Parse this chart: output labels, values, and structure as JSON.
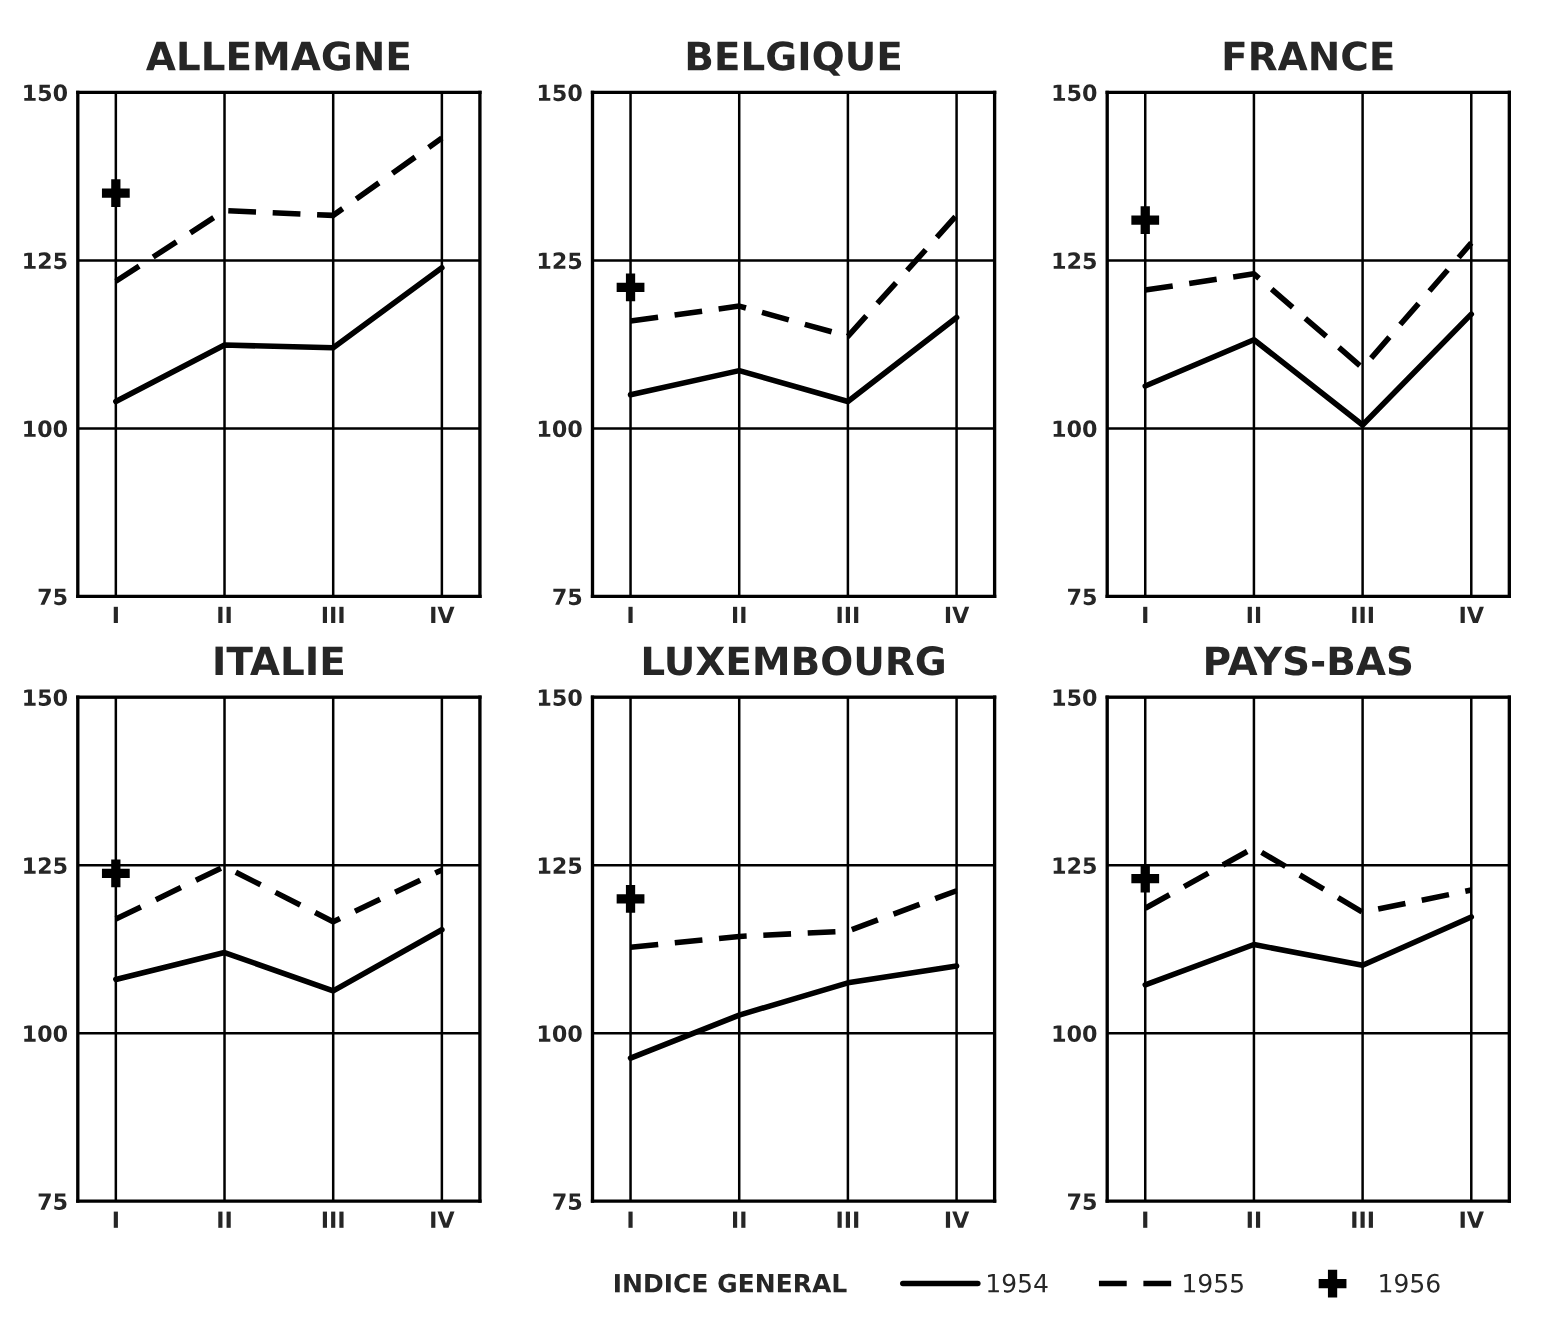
{
  "chart_data": [
    {
      "type": "line",
      "title": "ALLEMAGNE",
      "categories": [
        "I",
        "II",
        "III",
        "IV"
      ],
      "ylim": [
        75,
        150
      ],
      "yticks": [
        75,
        100,
        125,
        150
      ],
      "grid": true,
      "series": [
        {
          "color": "#000000",
          "line_style": "solid",
          "values": [
            104,
            112.4,
            112,
            123.9
          ]
        },
        {
          "color": "#000000",
          "line_style": "dashed",
          "values": [
            121.9,
            132.4,
            131.7,
            143.2
          ]
        },
        {
          "type": "scatter",
          "marker": "cross",
          "color": "#000000",
          "values": [
            135,
            null,
            null,
            null
          ]
        }
      ]
    },
    {
      "type": "line",
      "title": "BELGIQUE",
      "categories": [
        "I",
        "II",
        "III",
        "IV"
      ],
      "ylim": [
        75,
        150
      ],
      "yticks": [
        75,
        100,
        125,
        150
      ],
      "grid": true,
      "series": [
        {
          "color": "#000000",
          "line_style": "solid",
          "values": [
            105,
            108.6,
            104,
            116.5
          ]
        },
        {
          "color": "#000000",
          "line_style": "dashed",
          "values": [
            116,
            118.2,
            113.7,
            131.7
          ]
        },
        {
          "type": "scatter",
          "marker": "cross",
          "color": "#000000",
          "values": [
            121,
            null,
            null,
            null
          ]
        }
      ]
    },
    {
      "type": "line",
      "title": "FRANCE",
      "categories": [
        "I",
        "II",
        "III",
        "IV"
      ],
      "ylim": [
        75,
        150
      ],
      "yticks": [
        75,
        100,
        125,
        150
      ],
      "grid": true,
      "series": [
        {
          "color": "#000000",
          "line_style": "solid",
          "values": [
            106.3,
            113.2,
            100.5,
            117
          ]
        },
        {
          "color": "#000000",
          "line_style": "dashed",
          "values": [
            120.6,
            123,
            109,
            127.6
          ]
        },
        {
          "type": "scatter",
          "marker": "cross",
          "color": "#000000",
          "values": [
            131,
            null,
            null,
            null
          ]
        }
      ]
    },
    {
      "type": "line",
      "title": "ITALIE",
      "categories": [
        "I",
        "II",
        "III",
        "IV"
      ],
      "ylim": [
        75,
        150
      ],
      "yticks": [
        75,
        100,
        125,
        150
      ],
      "grid": true,
      "series": [
        {
          "color": "#000000",
          "line_style": "solid",
          "values": [
            108,
            112,
            106.3,
            115.4
          ]
        },
        {
          "color": "#000000",
          "line_style": "dashed",
          "values": [
            117,
            124.8,
            116.6,
            124.3
          ]
        },
        {
          "type": "scatter",
          "marker": "cross",
          "color": "#000000",
          "values": [
            123.8,
            null,
            null,
            null
          ]
        }
      ]
    },
    {
      "type": "line",
      "title": "LUXEMBOURG",
      "categories": [
        "I",
        "II",
        "III",
        "IV"
      ],
      "ylim": [
        75,
        150
      ],
      "yticks": [
        75,
        100,
        125,
        150
      ],
      "grid": true,
      "series": [
        {
          "color": "#000000",
          "line_style": "solid",
          "values": [
            96.3,
            102.7,
            107.5,
            110
          ]
        },
        {
          "color": "#000000",
          "line_style": "dashed",
          "values": [
            112.8,
            114.4,
            115.2,
            121.2
          ]
        },
        {
          "type": "scatter",
          "marker": "cross",
          "color": "#000000",
          "values": [
            120,
            null,
            null,
            null
          ]
        }
      ]
    },
    {
      "type": "line",
      "title": "PAYS-BAS",
      "categories": [
        "I",
        "II",
        "III",
        "IV"
      ],
      "ylim": [
        75,
        150
      ],
      "yticks": [
        75,
        100,
        125,
        150
      ],
      "grid": true,
      "legend": "bottom",
      "legend_title": "INDICE GENERAL",
      "series": [
        {
          "name": "1954",
          "color": "#000000",
          "line_style": "solid",
          "values": [
            107.2,
            113.2,
            110.1,
            117.3
          ]
        },
        {
          "name": "1955",
          "color": "#000000",
          "line_style": "dashed",
          "values": [
            118.6,
            127.6,
            118,
            121.3
          ]
        },
        {
          "name": "1956",
          "type": "scatter",
          "marker": "cross",
          "color": "#000000",
          "values": [
            123,
            null,
            null,
            null
          ]
        }
      ]
    }
  ]
}
